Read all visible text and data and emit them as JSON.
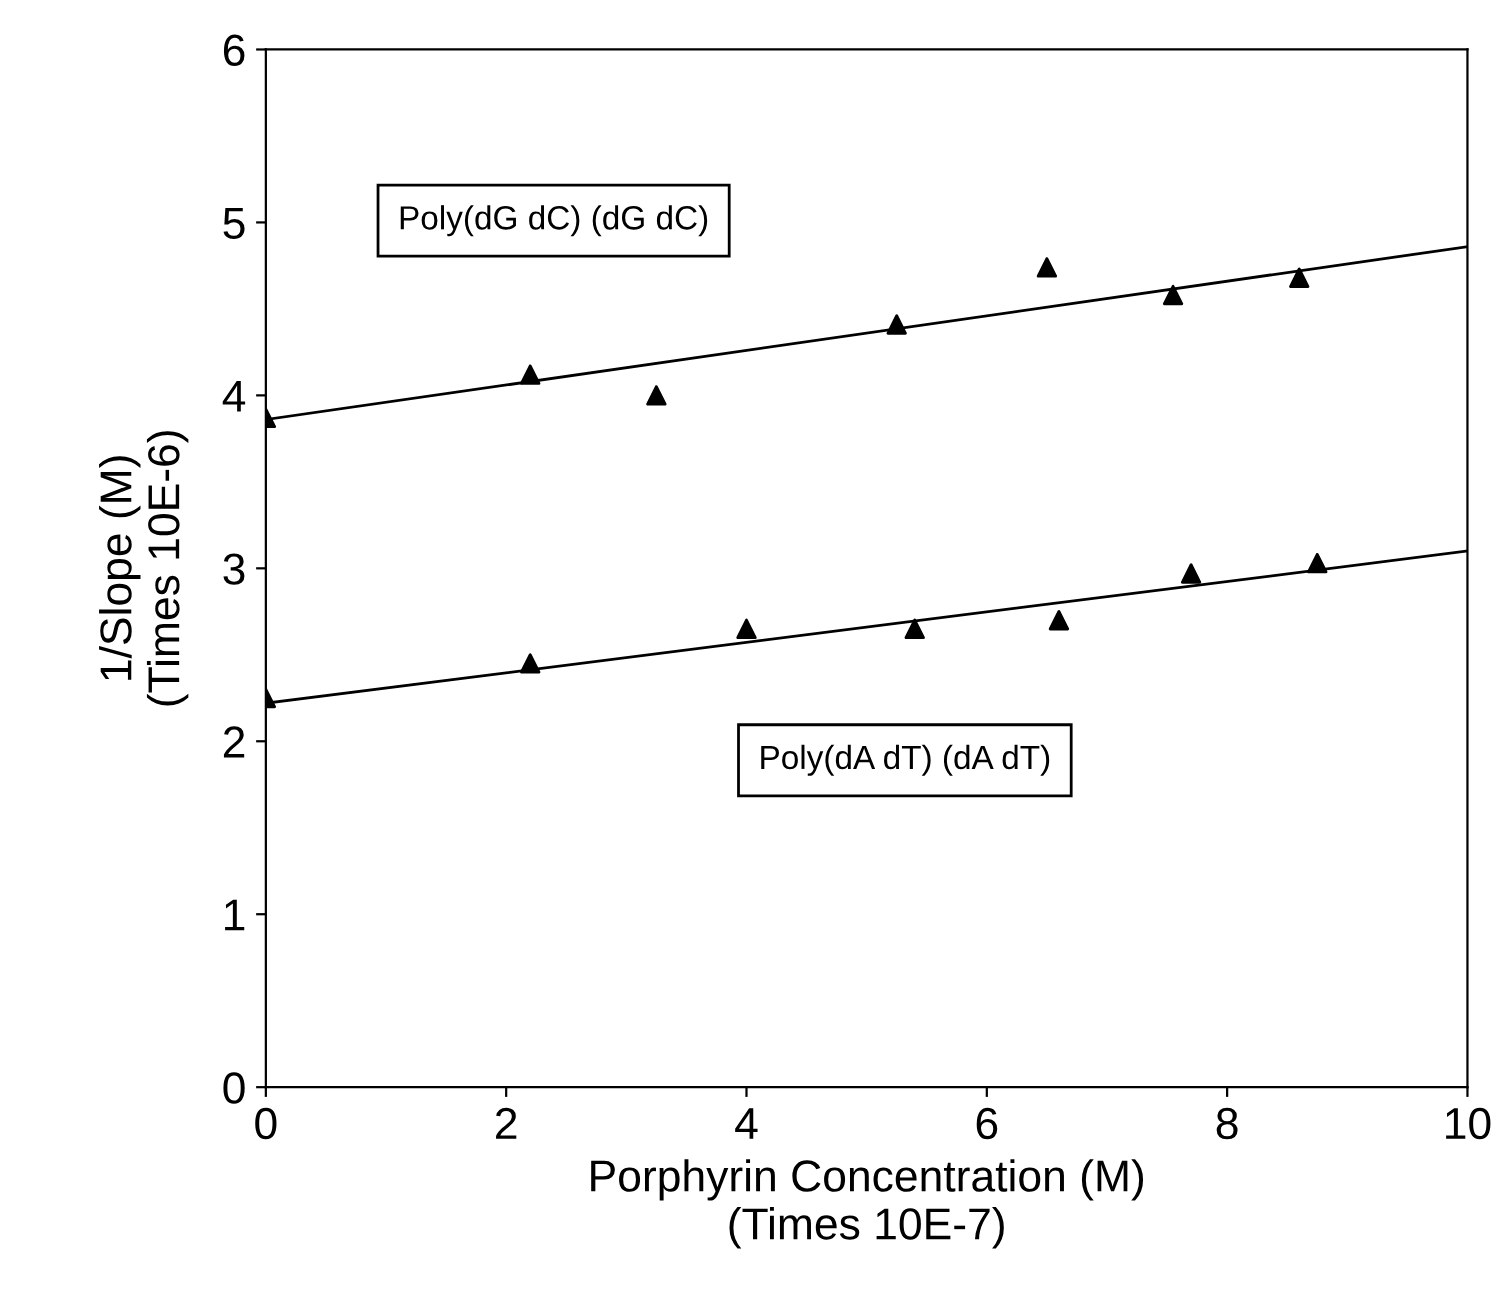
{
  "chart_data": {
    "type": "scatter",
    "xlabel": "Porphyrin Concentration (M)\n(Times 10E-7)",
    "ylabel": "1/Slope (M)\n(Times 10E-6)",
    "xlim": [
      0,
      10
    ],
    "xticks": [
      0,
      2,
      4,
      6,
      8,
      10
    ],
    "ylim": [
      0,
      6
    ],
    "yticks": [
      0,
      1,
      2,
      3,
      4,
      5,
      6
    ],
    "grid": false,
    "legend": false,
    "marker": "triangle",
    "series": [
      {
        "name": "Poly(dG dC) (dG dC)",
        "color": "#000000",
        "x": [
          0,
          2.2,
          3.25,
          5.25,
          6.5,
          7.55,
          8.6
        ],
        "values": [
          3.87,
          4.12,
          4.0,
          4.41,
          4.74,
          4.58,
          4.68
        ]
      },
      {
        "type": "line",
        "color": "#000000",
        "marker": "none",
        "x": [
          0,
          10
        ],
        "values": [
          3.86,
          4.86
        ]
      },
      {
        "name": "Poly(dA dT) (dA dT)",
        "color": "#000000",
        "x": [
          0,
          2.2,
          4.0,
          5.4,
          6.6,
          7.7,
          8.75
        ],
        "values": [
          2.25,
          2.45,
          2.65,
          2.65,
          2.7,
          2.97,
          3.03
        ]
      },
      {
        "type": "line",
        "color": "#000000",
        "marker": "none",
        "x": [
          0,
          10
        ],
        "values": [
          2.22,
          3.1
        ]
      }
    ]
  }
}
